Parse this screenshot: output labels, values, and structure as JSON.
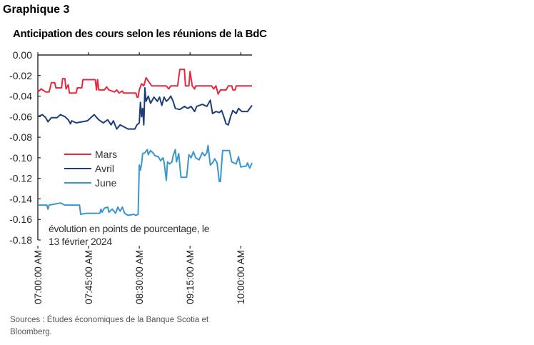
{
  "title": "Graphique 3",
  "chart_data": {
    "type": "line",
    "title": "Anticipation des cours selon les réunions de la BdC",
    "annotation_line1": "évolution en points de pourcentage, le",
    "annotation_line2": "13 février 2024",
    "x_unit": "minutes after 07:00 AM",
    "xlim": [
      0,
      190
    ],
    "ylim": [
      -0.18,
      0
    ],
    "yticks": [
      "0.00",
      "-0.02",
      "-0.04",
      "-0.06",
      "-0.08",
      "-0.10",
      "-0.12",
      "-0.14",
      "-0.16",
      "-0.18"
    ],
    "xticks": [
      {
        "label": "07:00:00 AM",
        "v": 0
      },
      {
        "label": "07:45:00 AM",
        "v": 45
      },
      {
        "label": "08:30:00 AM",
        "v": 90
      },
      {
        "label": "09:15:00 AM",
        "v": 135
      },
      {
        "label": "10:00:00 AM",
        "v": 180
      }
    ],
    "legend_position": "center-left",
    "series": [
      {
        "name": "Mars",
        "color": "#e8283c",
        "points": [
          [
            0,
            -0.036
          ],
          [
            3,
            -0.033
          ],
          [
            7,
            -0.036
          ],
          [
            10,
            -0.036
          ],
          [
            12,
            -0.027
          ],
          [
            15,
            -0.027
          ],
          [
            16,
            -0.032
          ],
          [
            21,
            -0.032
          ],
          [
            22,
            -0.023
          ],
          [
            24,
            -0.023
          ],
          [
            25,
            -0.033
          ],
          [
            27,
            -0.029
          ],
          [
            28,
            -0.037
          ],
          [
            34,
            -0.037
          ],
          [
            35,
            -0.032
          ],
          [
            39,
            -0.032
          ],
          [
            40,
            -0.024
          ],
          [
            51,
            -0.024
          ],
          [
            52,
            -0.034
          ],
          [
            53,
            -0.024
          ],
          [
            54,
            -0.034
          ],
          [
            59,
            -0.034
          ],
          [
            61,
            -0.031
          ],
          [
            63,
            -0.034
          ],
          [
            68,
            -0.036
          ],
          [
            70,
            -0.034
          ],
          [
            72,
            -0.037
          ],
          [
            75,
            -0.035
          ],
          [
            76,
            -0.037
          ],
          [
            87,
            -0.037
          ],
          [
            88,
            -0.041
          ],
          [
            89,
            -0.041
          ],
          [
            90,
            -0.034
          ],
          [
            92,
            -0.028
          ],
          [
            94,
            -0.03
          ],
          [
            96,
            -0.022
          ],
          [
            99,
            -0.027
          ],
          [
            101,
            -0.03
          ],
          [
            114,
            -0.03
          ],
          [
            116,
            -0.033
          ],
          [
            118,
            -0.03
          ],
          [
            124,
            -0.03
          ],
          [
            126,
            -0.014
          ],
          [
            130,
            -0.014
          ],
          [
            131,
            -0.03
          ],
          [
            134,
            -0.03
          ],
          [
            135,
            -0.016
          ],
          [
            137,
            -0.03
          ],
          [
            139,
            -0.033
          ],
          [
            140,
            -0.03
          ],
          [
            154,
            -0.03
          ],
          [
            156,
            -0.033
          ],
          [
            158,
            -0.03
          ],
          [
            160,
            -0.038
          ],
          [
            162,
            -0.034
          ],
          [
            167,
            -0.034
          ],
          [
            169,
            -0.03
          ],
          [
            172,
            -0.03
          ],
          [
            173,
            -0.034
          ],
          [
            175,
            -0.034
          ],
          [
            176,
            -0.03
          ],
          [
            190,
            -0.03
          ]
        ]
      },
      {
        "name": "Avril",
        "color": "#1f3d7a",
        "points": [
          [
            0,
            -0.06
          ],
          [
            4,
            -0.058
          ],
          [
            7,
            -0.061
          ],
          [
            9,
            -0.065
          ],
          [
            12,
            -0.061
          ],
          [
            17,
            -0.061
          ],
          [
            20,
            -0.058
          ],
          [
            24,
            -0.06
          ],
          [
            27,
            -0.063
          ],
          [
            29,
            -0.067
          ],
          [
            30,
            -0.064
          ],
          [
            34,
            -0.066
          ],
          [
            44,
            -0.064
          ],
          [
            50,
            -0.058
          ],
          [
            54,
            -0.063
          ],
          [
            58,
            -0.066
          ],
          [
            62,
            -0.063
          ],
          [
            65,
            -0.068
          ],
          [
            67,
            -0.064
          ],
          [
            70,
            -0.072
          ],
          [
            73,
            -0.068
          ],
          [
            80,
            -0.072
          ],
          [
            86,
            -0.072
          ],
          [
            88,
            -0.068
          ],
          [
            90,
            -0.066
          ],
          [
            91,
            -0.046
          ],
          [
            92,
            -0.06
          ],
          [
            93,
            -0.052
          ],
          [
            94,
            -0.068
          ],
          [
            95,
            -0.032
          ],
          [
            96,
            -0.045
          ],
          [
            98,
            -0.04
          ],
          [
            100,
            -0.047
          ],
          [
            103,
            -0.041
          ],
          [
            106,
            -0.045
          ],
          [
            108,
            -0.041
          ],
          [
            110,
            -0.049
          ],
          [
            112,
            -0.041
          ],
          [
            114,
            -0.045
          ],
          [
            116,
            -0.043
          ],
          [
            118,
            -0.04
          ],
          [
            120,
            -0.045
          ],
          [
            122,
            -0.052
          ],
          [
            126,
            -0.053
          ],
          [
            130,
            -0.05
          ],
          [
            133,
            -0.052
          ],
          [
            136,
            -0.05
          ],
          [
            139,
            -0.055
          ],
          [
            141,
            -0.05
          ],
          [
            146,
            -0.048
          ],
          [
            150,
            -0.05
          ],
          [
            153,
            -0.044
          ],
          [
            155,
            -0.057
          ],
          [
            158,
            -0.055
          ],
          [
            161,
            -0.056
          ],
          [
            163,
            -0.054
          ],
          [
            165,
            -0.06
          ],
          [
            167,
            -0.067
          ],
          [
            169,
            -0.068
          ],
          [
            171,
            -0.06
          ],
          [
            173,
            -0.054
          ],
          [
            176,
            -0.057
          ],
          [
            178,
            -0.052
          ],
          [
            181,
            -0.055
          ],
          [
            186,
            -0.055
          ],
          [
            190,
            -0.049
          ]
        ]
      },
      {
        "name": "June",
        "color": "#3a96cf",
        "points": [
          [
            0,
            -0.146
          ],
          [
            8,
            -0.146
          ],
          [
            9,
            -0.15
          ],
          [
            10,
            -0.146
          ],
          [
            20,
            -0.144
          ],
          [
            24,
            -0.146
          ],
          [
            37,
            -0.146
          ],
          [
            38,
            -0.155
          ],
          [
            43,
            -0.154
          ],
          [
            55,
            -0.154
          ],
          [
            56,
            -0.15
          ],
          [
            57,
            -0.153
          ],
          [
            59,
            -0.149
          ],
          [
            62,
            -0.148
          ],
          [
            63,
            -0.153
          ],
          [
            66,
            -0.15
          ],
          [
            69,
            -0.154
          ],
          [
            71,
            -0.148
          ],
          [
            73,
            -0.152
          ],
          [
            75,
            -0.148
          ],
          [
            77,
            -0.154
          ],
          [
            80,
            -0.156
          ],
          [
            85,
            -0.155
          ],
          [
            87,
            -0.156
          ],
          [
            89,
            -0.155
          ],
          [
            90,
            -0.107
          ],
          [
            91,
            -0.112
          ],
          [
            92,
            -0.106
          ],
          [
            93,
            -0.096
          ],
          [
            95,
            -0.095
          ],
          [
            97,
            -0.092
          ],
          [
            98,
            -0.097
          ],
          [
            100,
            -0.093
          ],
          [
            102,
            -0.095
          ],
          [
            104,
            -0.098
          ],
          [
            107,
            -0.099
          ],
          [
            109,
            -0.103
          ],
          [
            111,
            -0.1
          ],
          [
            112,
            -0.104
          ],
          [
            114,
            -0.122
          ],
          [
            115,
            -0.104
          ],
          [
            117,
            -0.106
          ],
          [
            119,
            -0.104
          ],
          [
            120,
            -0.098
          ],
          [
            122,
            -0.092
          ],
          [
            123,
            -0.104
          ],
          [
            125,
            -0.096
          ],
          [
            127,
            -0.119
          ],
          [
            132,
            -0.119
          ],
          [
            134,
            -0.097
          ],
          [
            136,
            -0.1
          ],
          [
            138,
            -0.094
          ],
          [
            140,
            -0.1
          ],
          [
            143,
            -0.102
          ],
          [
            146,
            -0.095
          ],
          [
            148,
            -0.098
          ],
          [
            150,
            -0.095
          ],
          [
            151,
            -0.088
          ],
          [
            153,
            -0.107
          ],
          [
            155,
            -0.105
          ],
          [
            157,
            -0.101
          ],
          [
            159,
            -0.105
          ],
          [
            161,
            -0.123
          ],
          [
            162,
            -0.123
          ],
          [
            163,
            -0.106
          ],
          [
            164,
            -0.093
          ],
          [
            170,
            -0.093
          ],
          [
            172,
            -0.104
          ],
          [
            176,
            -0.106
          ],
          [
            178,
            -0.099
          ],
          [
            180,
            -0.109
          ],
          [
            185,
            -0.108
          ],
          [
            186,
            -0.105
          ],
          [
            188,
            -0.11
          ],
          [
            190,
            -0.105
          ]
        ]
      }
    ]
  },
  "sources_line1": "Sources : Études économiques de la Banque Scotia et",
  "sources_line2": "Bloomberg."
}
